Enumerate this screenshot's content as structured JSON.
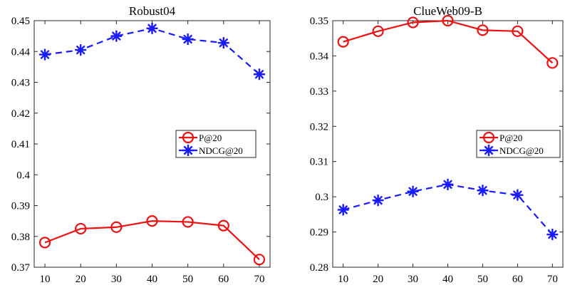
{
  "chart_data": [
    {
      "type": "line",
      "title": "Robust04",
      "xlabel": "",
      "ylabel": "",
      "x": [
        10,
        20,
        30,
        40,
        50,
        60,
        70
      ],
      "xlim": [
        7,
        73
      ],
      "ylim": [
        0.37,
        0.45
      ],
      "x_ticks": [
        "10",
        "20",
        "30",
        "40",
        "50",
        "60",
        "70"
      ],
      "y_ticks": [
        "0.37",
        "0.38",
        "0.39",
        "0.4",
        "0.41",
        "0.42",
        "0.43",
        "0.44",
        "0.45"
      ],
      "legend": "center-right",
      "grid": false,
      "series": [
        {
          "name": "P@20",
          "color": "#ee1111",
          "line": "solid",
          "marker": "circle",
          "values": [
            0.378,
            0.3825,
            0.383,
            0.385,
            0.3847,
            0.3835,
            0.3725
          ]
        },
        {
          "name": "NDCG@20",
          "color": "#1a1aff",
          "line": "dashed",
          "marker": "asterisk",
          "values": [
            0.439,
            0.4405,
            0.445,
            0.4475,
            0.444,
            0.4428,
            0.4326
          ]
        }
      ]
    },
    {
      "type": "line",
      "title": "ClueWeb09-B",
      "xlabel": "",
      "ylabel": "",
      "x": [
        10,
        20,
        30,
        40,
        50,
        60,
        70
      ],
      "xlim": [
        7,
        73
      ],
      "ylim": [
        0.28,
        0.35
      ],
      "x_ticks": [
        "10",
        "20",
        "30",
        "40",
        "50",
        "60",
        "70"
      ],
      "y_ticks": [
        "0.28",
        "0.29",
        "0.3",
        "0.31",
        "0.32",
        "0.33",
        "0.34",
        "0.35"
      ],
      "legend": "center-right",
      "grid": false,
      "series": [
        {
          "name": "P@20",
          "color": "#ee1111",
          "line": "solid",
          "marker": "circle",
          "values": [
            0.344,
            0.347,
            0.3495,
            0.35,
            0.3473,
            0.347,
            0.338
          ]
        },
        {
          "name": "NDCG@20",
          "color": "#1a1aff",
          "line": "dashed",
          "marker": "asterisk",
          "values": [
            0.2963,
            0.299,
            0.3015,
            0.3035,
            0.3018,
            0.3005,
            0.2893
          ]
        }
      ]
    }
  ]
}
